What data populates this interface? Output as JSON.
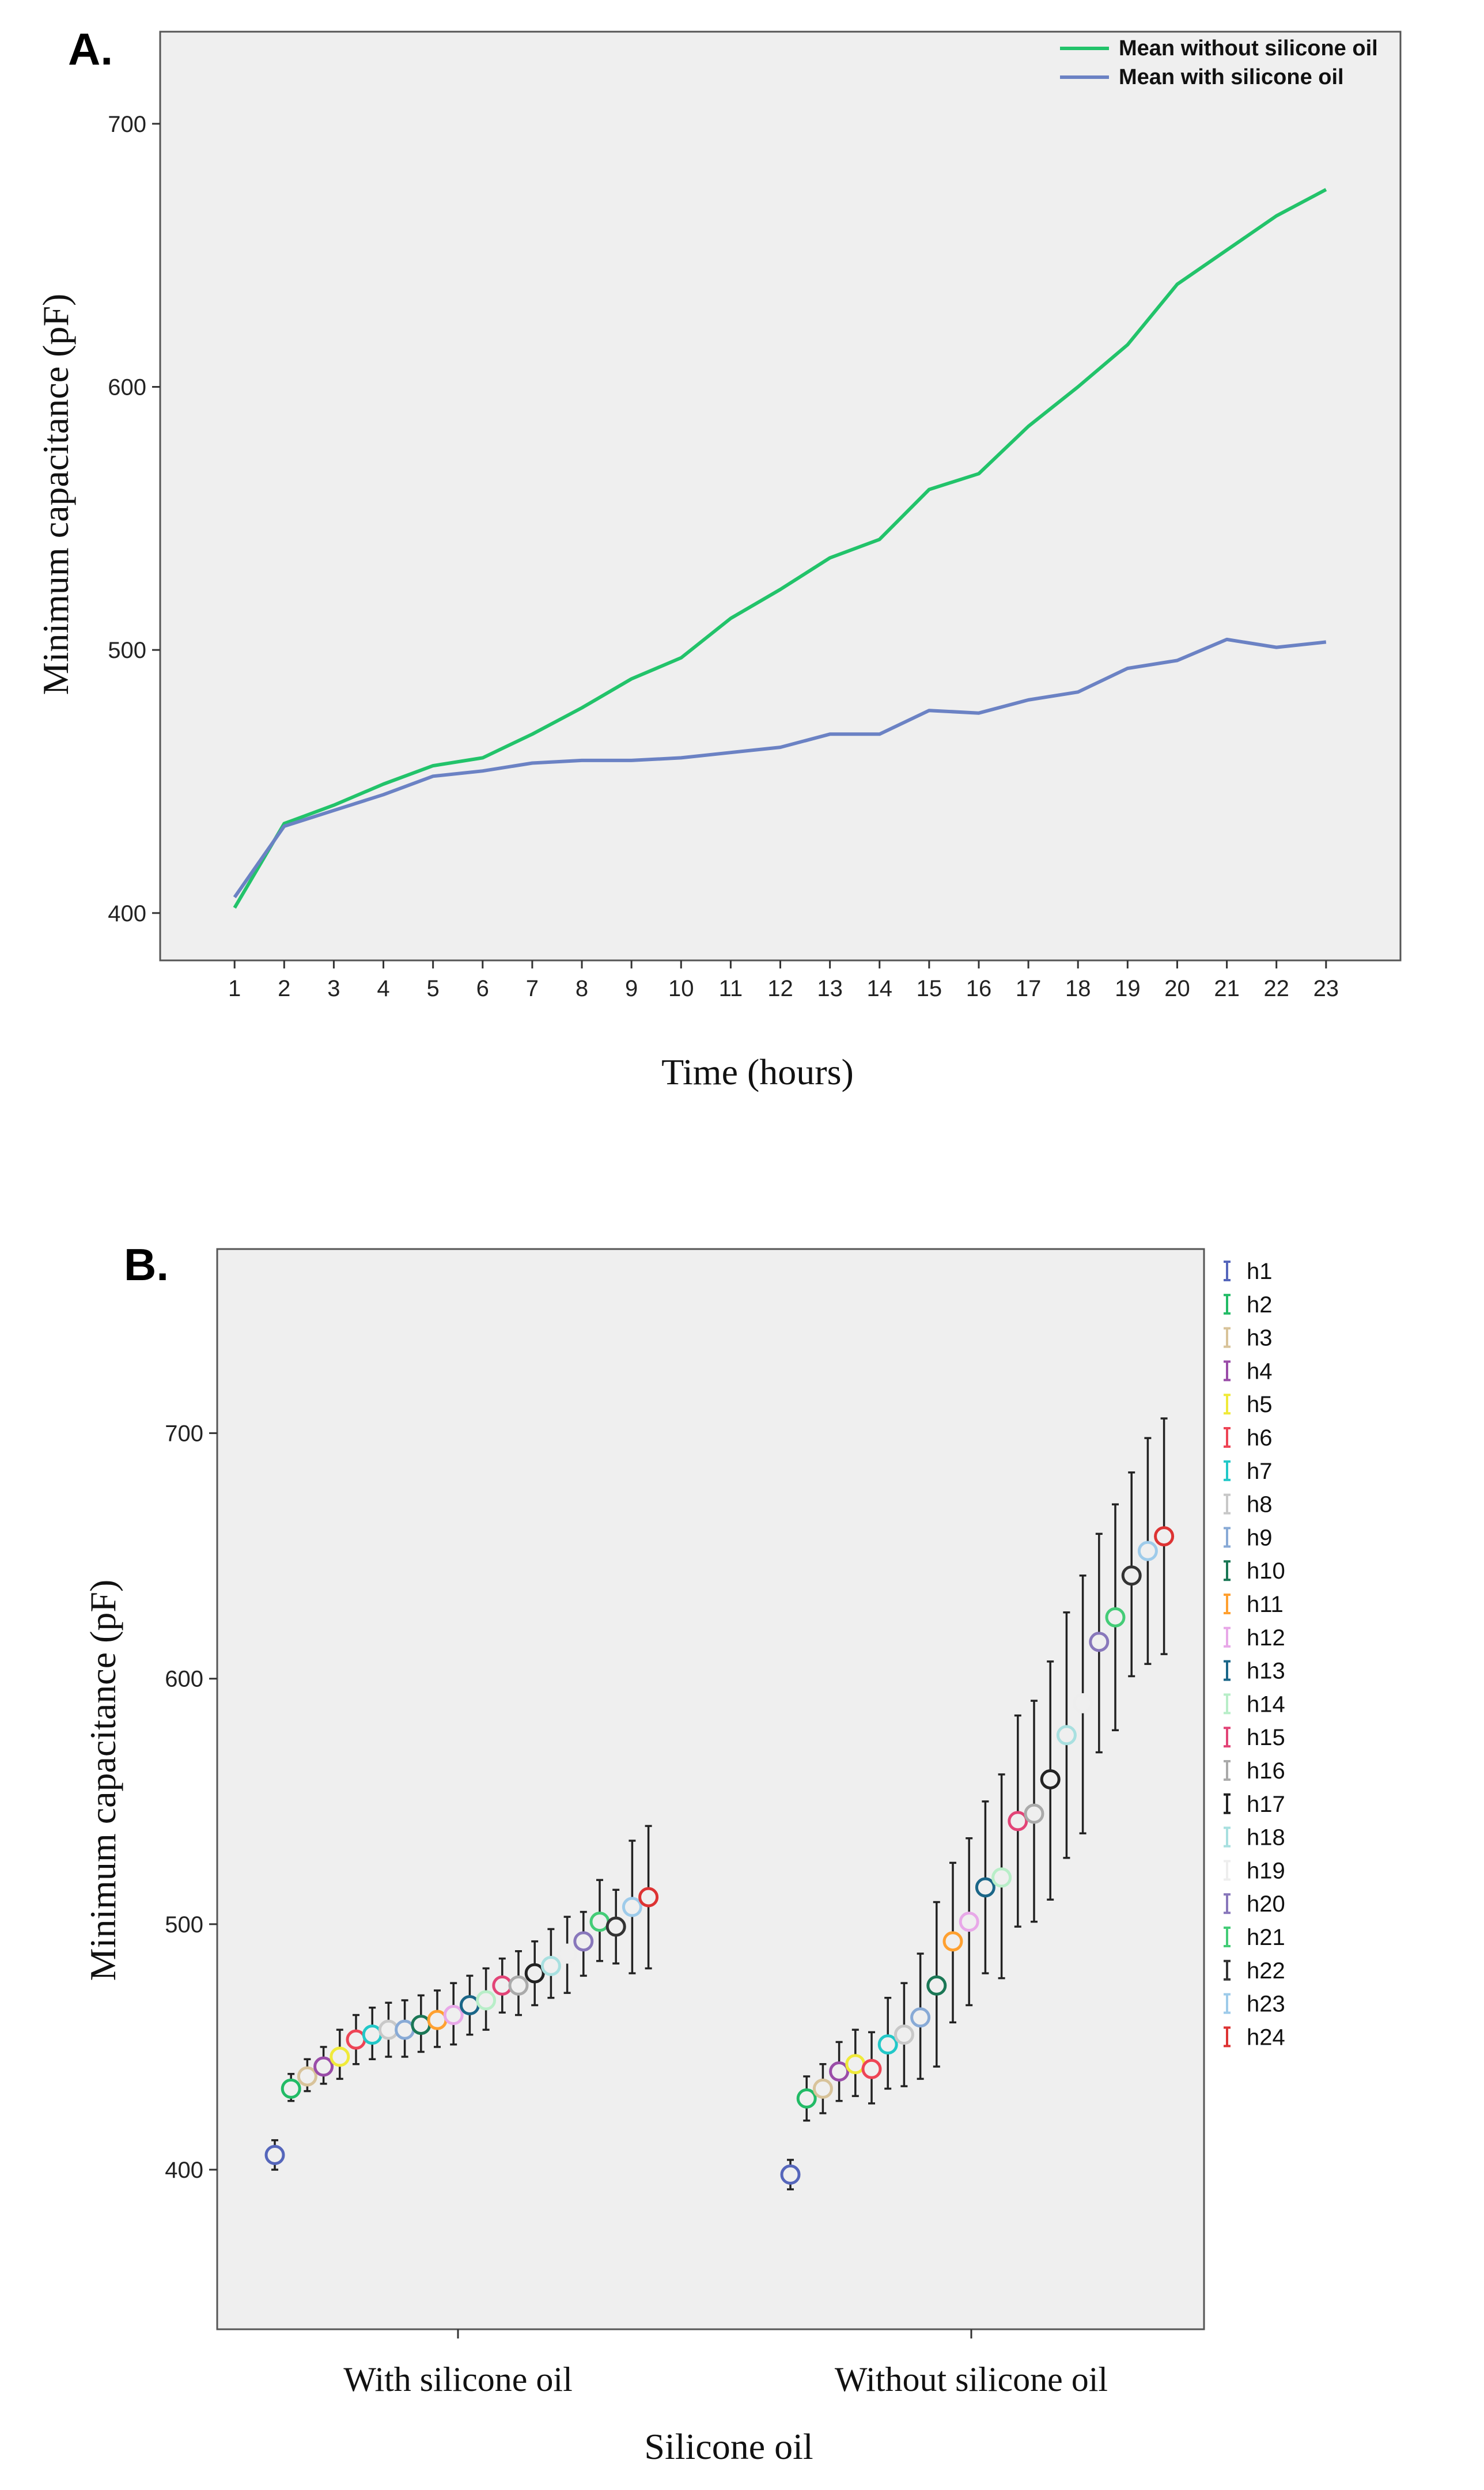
{
  "chart_data": [
    {
      "type": "line",
      "panel_label": "A.",
      "title": "",
      "xlabel": "Time (hours)",
      "ylabel": "Minimum capacitance (pF)",
      "x": [
        1,
        2,
        3,
        4,
        5,
        6,
        7,
        8,
        9,
        10,
        11,
        12,
        13,
        14,
        15,
        16,
        17,
        18,
        19,
        20,
        21,
        22,
        23
      ],
      "x_tick_labels": [
        "1",
        "2",
        "3",
        "4",
        "5",
        "6",
        "7",
        "8",
        "9",
        "10",
        "11",
        "12",
        "13",
        "14",
        "15",
        "16",
        "17",
        "18",
        "19",
        "20",
        "21",
        "22",
        "23"
      ],
      "xlim": [
        -0.5,
        24.5
      ],
      "ylim": [
        382,
        735
      ],
      "y_ticks": [
        400,
        500,
        600,
        700
      ],
      "y_tick_labels": [
        "400",
        "500",
        "600",
        "700"
      ],
      "legend_position": "top-right",
      "series": [
        {
          "name": "Mean without silicone oil",
          "color": "#22c36a",
          "values": [
            402,
            434,
            441,
            449,
            456,
            459,
            468,
            478,
            489,
            497,
            512,
            523,
            535,
            542,
            561,
            567,
            585,
            600,
            616,
            639,
            652,
            665,
            675
          ]
        },
        {
          "name": "Mean with silicone oil",
          "color": "#6b82c4",
          "values": [
            406,
            433,
            439,
            445,
            452,
            454,
            457,
            458,
            458,
            459,
            461,
            463,
            468,
            468,
            477,
            476,
            481,
            484,
            493,
            496,
            504,
            501,
            503
          ]
        }
      ]
    },
    {
      "type": "scatter",
      "subtype": "error-bar",
      "panel_label": "B.",
      "title": "",
      "xlabel": "Silicone oil",
      "ylabel": "Minimum capacitance (pF)",
      "categories": [
        "With silicone oil",
        "Without silicone oil"
      ],
      "ylim": [
        335,
        775
      ],
      "y_ticks": [
        400,
        500,
        600,
        700
      ],
      "y_tick_labels": [
        "400",
        "500",
        "600",
        "700"
      ],
      "legend_position": "right",
      "series": [
        {
          "name": "h1",
          "color": "#5566bb",
          "with": [
            406,
            400,
            412
          ],
          "without": [
            398,
            392,
            404
          ]
        },
        {
          "name": "h2",
          "color": "#22bb66",
          "with": [
            433,
            428,
            439
          ],
          "without": [
            429,
            420,
            438
          ]
        },
        {
          "name": "h3",
          "color": "#d8c39a",
          "with": [
            438,
            432,
            445
          ],
          "without": [
            433,
            423,
            443
          ]
        },
        {
          "name": "h4",
          "color": "#9a4ca8",
          "with": [
            442,
            435,
            450
          ],
          "without": [
            440,
            428,
            452
          ]
        },
        {
          "name": "h5",
          "color": "#f0ea3a",
          "with": [
            446,
            437,
            457
          ],
          "without": [
            443,
            430,
            457
          ]
        },
        {
          "name": "h6",
          "color": "#ee4455",
          "with": [
            453,
            443,
            463
          ],
          "without": [
            441,
            427,
            456
          ]
        },
        {
          "name": "h7",
          "color": "#22c8c8",
          "with": [
            455,
            445,
            466
          ],
          "without": [
            451,
            433,
            470
          ]
        },
        {
          "name": "h8",
          "color": "#c8c8c8",
          "with": [
            457,
            446,
            468
          ],
          "without": [
            455,
            434,
            476
          ]
        },
        {
          "name": "h9",
          "color": "#88aad6",
          "with": [
            457,
            446,
            469
          ],
          "without": [
            462,
            437,
            488
          ]
        },
        {
          "name": "h10",
          "color": "#1a7755",
          "with": [
            459,
            448,
            471
          ],
          "without": [
            475,
            442,
            509
          ]
        },
        {
          "name": "h11",
          "color": "#ffa030",
          "with": [
            461,
            450,
            473
          ],
          "without": [
            493,
            460,
            525
          ]
        },
        {
          "name": "h12",
          "color": "#e8a8e8",
          "with": [
            463,
            451,
            476
          ],
          "without": [
            501,
            467,
            535
          ]
        },
        {
          "name": "h13",
          "color": "#1a6688",
          "with": [
            467,
            455,
            479
          ],
          "without": [
            515,
            480,
            550
          ]
        },
        {
          "name": "h14",
          "color": "#b8eec8",
          "with": [
            469,
            457,
            482
          ],
          "without": [
            519,
            478,
            561
          ]
        },
        {
          "name": "h15",
          "color": "#e24477",
          "with": [
            475,
            464,
            486
          ],
          "without": [
            542,
            499,
            585
          ]
        },
        {
          "name": "h16",
          "color": "#aaaaaa",
          "with": [
            475,
            463,
            489
          ],
          "without": [
            545,
            501,
            591
          ]
        },
        {
          "name": "h17",
          "color": "#222222",
          "with": [
            480,
            467,
            493
          ],
          "without": [
            559,
            510,
            607
          ]
        },
        {
          "name": "h18",
          "color": "#a8e0e0",
          "with": [
            483,
            470,
            498
          ],
          "without": [
            577,
            527,
            627
          ]
        },
        {
          "name": "h19",
          "color": "#eeeeee",
          "with": [
            488,
            472,
            503
          ],
          "without": [
            590,
            537,
            642
          ]
        },
        {
          "name": "h20",
          "color": "#8877bb",
          "with": [
            493,
            479,
            505
          ],
          "without": [
            615,
            570,
            659
          ]
        },
        {
          "name": "h21",
          "color": "#44cc77",
          "with": [
            501,
            485,
            518
          ],
          "without": [
            625,
            579,
            671
          ]
        },
        {
          "name": "h22",
          "color": "#333333",
          "with": [
            499,
            484,
            514
          ],
          "without": [
            642,
            601,
            684
          ]
        },
        {
          "name": "h23",
          "color": "#9ecbea",
          "with": [
            507,
            480,
            534
          ],
          "without": [
            652,
            606,
            698
          ]
        },
        {
          "name": "h24",
          "color": "#dd3333",
          "with": [
            511,
            482,
            540
          ],
          "without": [
            658,
            610,
            706
          ]
        }
      ]
    }
  ]
}
